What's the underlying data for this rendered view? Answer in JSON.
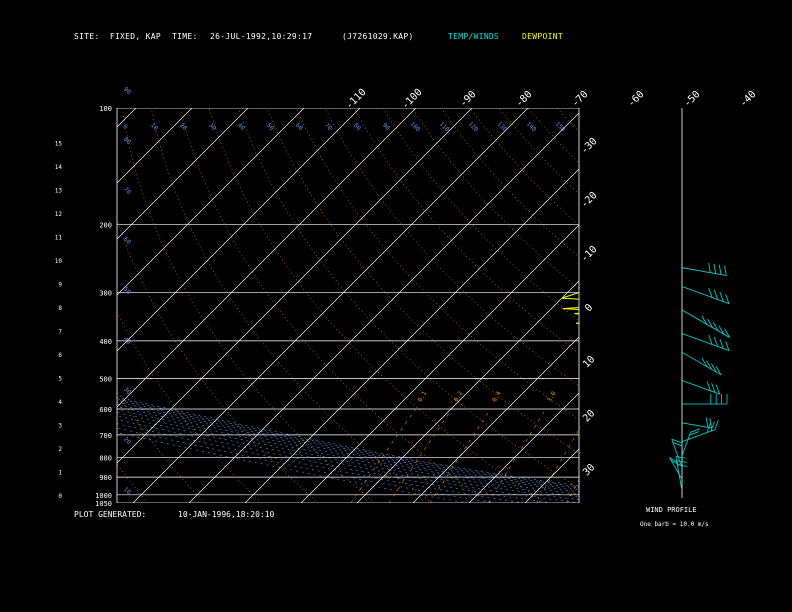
{
  "header": {
    "site_label": "SITE:",
    "site_value": "FIXED, KAP",
    "time_label": "TIME:",
    "time_value": "26-JUL-1992,10:29:17",
    "file_value": "(J7261029.KAP)",
    "legend_temp": "TEMP/WINDS",
    "legend_dew": "DEWPOINT"
  },
  "footer": {
    "plot_generated_label": "PLOT GENERATED:",
    "plot_generated_value": "10-JAN-1996,18:20:10"
  },
  "wind_profile": {
    "title": "WIND PROFILE",
    "subtitle": "One barb = 10.0 m/s"
  },
  "colors": {
    "temperature": "#00e0e0",
    "dewpoint": "#ffff00",
    "isotherm": "#ffffff",
    "mixing_ratio": "#ff8c00",
    "dry_adiabat": "#ff8c00",
    "moist_adiabat": "#6495ed",
    "isobar": "#ffffff"
  },
  "chart_data": {
    "type": "line",
    "title": "",
    "pressure_labels": [
      "100",
      "200",
      "300",
      "400",
      "500",
      "600",
      "700",
      "800",
      "900",
      "1000",
      "1050"
    ],
    "pressure_levels": [
      100,
      200,
      300,
      400,
      500,
      600,
      700,
      800,
      900,
      1000,
      1050
    ],
    "height_labels": [
      "0",
      "1",
      "2",
      "3",
      "4",
      "5",
      "6",
      "7",
      "8",
      "9",
      "10",
      "11",
      "12",
      "13",
      "14",
      "15"
    ],
    "skew_temp_labels": [
      "-110",
      "-100",
      "-90",
      "-80",
      "-70",
      "-60",
      "-50",
      "-40"
    ],
    "right_temp_labels": [
      "-30",
      "-20",
      "-10",
      "0",
      "10",
      "20",
      "30"
    ],
    "mixing_ratio_labels": [
      "0.1",
      "0.2",
      "0.4",
      "1.0",
      "2.0",
      "3.0",
      "5.0",
      "8.0",
      "10.0",
      "15.0",
      "20.0"
    ],
    "dry_adiabat_labels": [
      "0",
      "10",
      "20",
      "30",
      "40",
      "50",
      "60",
      "70",
      "80",
      "90",
      "100",
      "110",
      "120",
      "130",
      "140",
      "150",
      "160"
    ],
    "moist_adiabat_labels": [
      "10",
      "20",
      "30",
      "40",
      "50",
      "60",
      "70",
      "80",
      "90"
    ],
    "series": [
      {
        "name": "TEMP/WINDS",
        "points": [
          [
            1000,
            31
          ],
          [
            980,
            29.5
          ],
          [
            950,
            27
          ],
          [
            920,
            25
          ],
          [
            900,
            23.5
          ],
          [
            880,
            22
          ],
          [
            850,
            20
          ],
          [
            800,
            16.5
          ],
          [
            750,
            13
          ],
          [
            700,
            9
          ],
          [
            650,
            5
          ],
          [
            600,
            1
          ],
          [
            575,
            -1
          ],
          [
            550,
            -3.5
          ],
          [
            500,
            -8
          ],
          [
            470,
            -11
          ],
          [
            450,
            -13
          ],
          [
            420,
            -16.5
          ],
          [
            400,
            -19
          ],
          [
            370,
            -23
          ],
          [
            350,
            -26
          ],
          [
            320,
            -31
          ],
          [
            300,
            -34
          ],
          [
            280,
            -37.5
          ],
          [
            265,
            -40
          ],
          [
            255,
            -42
          ]
        ]
      },
      {
        "name": "DEWPOINT",
        "points": [
          [
            1000,
            22
          ],
          [
            990,
            23
          ],
          [
            980,
            20
          ],
          [
            960,
            20.5
          ],
          [
            940,
            19.5
          ],
          [
            920,
            21
          ],
          [
            900,
            20
          ],
          [
            870,
            19
          ],
          [
            850,
            19.5
          ],
          [
            820,
            17
          ],
          [
            800,
            17.5
          ],
          [
            780,
            14.5
          ],
          [
            750,
            15
          ],
          [
            720,
            11.5
          ],
          [
            700,
            12.5
          ],
          [
            680,
            9
          ],
          [
            660,
            11
          ],
          [
            640,
            7
          ],
          [
            620,
            4
          ],
          [
            600,
            5
          ],
          [
            580,
            1
          ],
          [
            570,
            4
          ],
          [
            560,
            -1
          ],
          [
            550,
            1
          ],
          [
            535,
            -5
          ],
          [
            520,
            0
          ],
          [
            500,
            -5
          ],
          [
            490,
            -9
          ],
          [
            480,
            4
          ],
          [
            470,
            -1
          ],
          [
            450,
            -6
          ],
          [
            440,
            -12
          ],
          [
            430,
            -9
          ],
          [
            420,
            -14
          ],
          [
            400,
            -15
          ],
          [
            390,
            -18
          ],
          [
            380,
            -24
          ],
          [
            370,
            -20
          ],
          [
            360,
            -33
          ],
          [
            350,
            -25
          ],
          [
            340,
            -35
          ],
          [
            335,
            -29
          ],
          [
            330,
            -38
          ],
          [
            320,
            -25
          ],
          [
            310,
            -40
          ],
          [
            300,
            -38
          ],
          [
            290,
            -32
          ],
          [
            280,
            -40
          ],
          [
            270,
            -34
          ],
          [
            260,
            -38
          ],
          [
            250,
            -36
          ],
          [
            240,
            -36
          ]
        ]
      }
    ],
    "winds": [
      {
        "h": 0.3,
        "dir": 10,
        "spd": 25
      },
      {
        "h": 0.8,
        "dir": 30,
        "spd": 15
      },
      {
        "h": 1.3,
        "dir": 20,
        "spd": 20
      },
      {
        "h": 1.8,
        "dir": 340,
        "spd": 15
      },
      {
        "h": 2.4,
        "dir": 290,
        "spd": 25
      },
      {
        "h": 3.2,
        "dir": 260,
        "spd": 20
      },
      {
        "h": 4.0,
        "dir": 270,
        "spd": 35
      },
      {
        "h": 5.0,
        "dir": 250,
        "spd": 30
      },
      {
        "h": 6.2,
        "dir": 240,
        "spd": 35
      },
      {
        "h": 7.0,
        "dir": 250,
        "spd": 40
      },
      {
        "h": 8.0,
        "dir": 240,
        "spd": 45
      },
      {
        "h": 9.0,
        "dir": 250,
        "spd": 40
      },
      {
        "h": 9.8,
        "dir": 260,
        "spd": 35
      }
    ]
  }
}
